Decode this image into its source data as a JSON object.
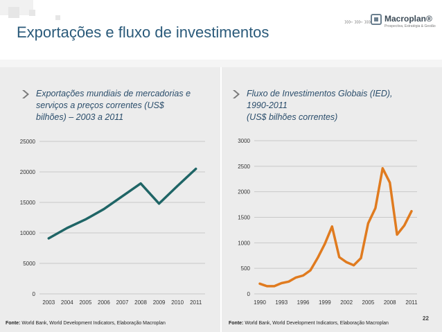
{
  "header": {
    "title": "Exportações e fluxo de investimentos",
    "logo_name": "Macroplan®",
    "logo_tagline": "Prospectiva, Estratégia & Gestão",
    "logo_arrows": "›››· ›››· ›››"
  },
  "page_number": "22",
  "charts": {
    "left": {
      "title_lines": [
        "Exportações mundiais de mercadorias e",
        "serviços a preços correntes (US$",
        "bilhões) – 2003 a 2011"
      ],
      "source_label": "Fonte:",
      "source_text": "World Bank, World Development Indicators, Elaboração Macroplan"
    },
    "right": {
      "title_lines": [
        "Fluxo de Investimentos Globais (IED),",
        "1990-2011",
        "(US$ bilhões correntes)"
      ],
      "source_label": "Fonte:",
      "source_text": "World Bank, World Development Indicators, Elaboração Macroplan"
    }
  },
  "colors": {
    "left_series": "#1f6566",
    "right_series": "#e07b1f",
    "grid": "#c8c8c8",
    "title": "#2a5a7a"
  },
  "chart_data": [
    {
      "type": "line",
      "title": "Exportações mundiais de mercadorias e serviços a preços correntes (US$ bilhões) – 2003 a 2011",
      "x": [
        2003,
        2004,
        2005,
        2006,
        2007,
        2008,
        2009,
        2010,
        2011
      ],
      "series": [
        {
          "values": [
            9100,
            10800,
            12200,
            13900,
            16000,
            18100,
            14800,
            17700,
            20500
          ]
        }
      ],
      "ylim": [
        0,
        25000
      ],
      "yticks": [
        0,
        5000,
        10000,
        15000,
        20000,
        25000
      ],
      "xticks": [
        2003,
        2004,
        2005,
        2006,
        2007,
        2008,
        2009,
        2010,
        2011
      ],
      "grid": true,
      "legend": "none"
    },
    {
      "type": "line",
      "title": "Fluxo de Investimentos Globais (IED), 1990-2011 (US$ bilhões correntes)",
      "x": [
        1990,
        1991,
        1992,
        1993,
        1994,
        1995,
        1996,
        1997,
        1998,
        1999,
        2000,
        2001,
        2002,
        2003,
        2004,
        2005,
        2006,
        2007,
        2008,
        2009,
        2010,
        2011
      ],
      "series": [
        {
          "values": [
            200,
            150,
            150,
            210,
            240,
            320,
            360,
            460,
            700,
            980,
            1320,
            720,
            620,
            560,
            700,
            1380,
            1680,
            2460,
            2180,
            1160,
            1340,
            1620
          ]
        }
      ],
      "ylim": [
        0,
        3000
      ],
      "yticks": [
        0,
        500,
        1000,
        1500,
        2000,
        2500,
        3000
      ],
      "xticks": [
        1990,
        1993,
        1996,
        1999,
        2002,
        2005,
        2008,
        2011
      ],
      "grid": true,
      "legend": "none"
    }
  ]
}
